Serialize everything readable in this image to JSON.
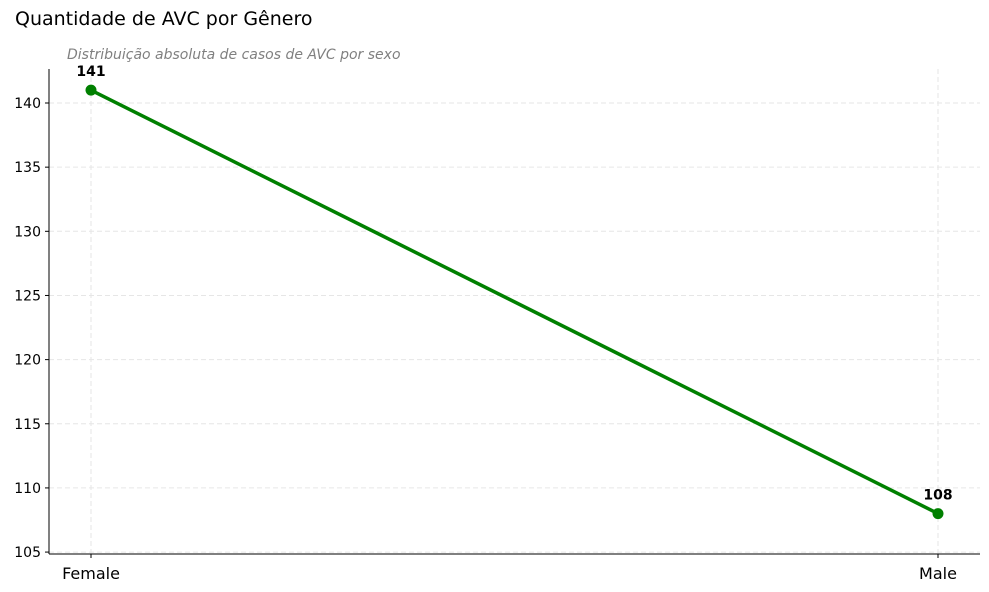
{
  "chart_data": {
    "type": "line",
    "title": "Quantidade de AVC por Gênero",
    "subtitle": "Distribuição absoluta de casos de AVC por sexo",
    "xlabel": "",
    "ylabel": "",
    "categories": [
      "Female",
      "Male"
    ],
    "series": [
      {
        "values": [
          141,
          108
        ],
        "data_labels": [
          "141",
          "108"
        ]
      }
    ],
    "ylim": [
      104.85,
      142.65
    ],
    "yticks": [
      105,
      110,
      115,
      120,
      125,
      130,
      135,
      140
    ],
    "grid": true,
    "line_color": "#008000",
    "grid_color": "#e6e6e6",
    "legend": "none"
  }
}
